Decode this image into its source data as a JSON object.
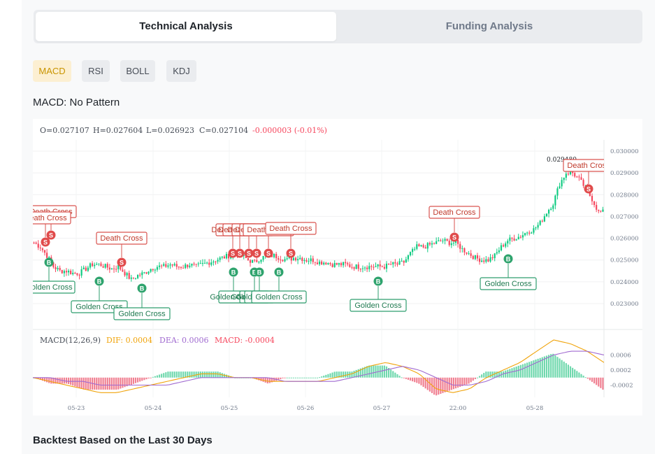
{
  "tabs": {
    "technical": "Technical Analysis",
    "funding": "Funding Analysis"
  },
  "indicators": {
    "items": [
      "MACD",
      "RSI",
      "BOLL",
      "KDJ"
    ],
    "selected": "MACD"
  },
  "pattern_text": "MACD: No Pattern",
  "ohlc": {
    "open": "O=0.027107",
    "high": "H=0.027604",
    "low": "L=0.026923",
    "close": "C=0.027104",
    "change": "-0.000003 (-0.01%)"
  },
  "price_axis": [
    "0.030000",
    "0.029000",
    "0.028000",
    "0.027000",
    "0.026000",
    "0.025000",
    "0.024000",
    "0.023000"
  ],
  "macd_axis": [
    "0.0006",
    "0.0002",
    "-0.0002"
  ],
  "time_axis": [
    "05-23",
    "05-24",
    "05-25",
    "05-26",
    "05-27",
    "22:00",
    "05-28"
  ],
  "macd_legend": {
    "label": "MACD(12,26,9)",
    "dif": "DIF: 0.0004",
    "dea": "DEA: 0.0006",
    "macd": "MACD: -0.0004"
  },
  "max_price_label": "0.029480",
  "signals": {
    "death": "Death Cross",
    "golden": "Golden Cross",
    "buy_marker": "B",
    "sell_marker": "S"
  },
  "colors": {
    "up": "#0ecb81",
    "down": "#f6465d",
    "dif": "#f0a30a",
    "dea": "#a06ad0",
    "accent": "#c99400"
  },
  "backtest_title": "Backtest Based on the Last 30 Days",
  "chart_data": {
    "type": "candlestick",
    "close_series": [
      0.0258,
      0.0256,
      0.0252,
      0.0247,
      0.0245,
      0.0245,
      0.0244,
      0.0244,
      0.0246,
      0.0248,
      0.0248,
      0.0247,
      0.0246,
      0.0247,
      0.0244,
      0.0241,
      0.0243,
      0.0244,
      0.0246,
      0.0247,
      0.0247,
      0.0248,
      0.0247,
      0.0247,
      0.0248,
      0.0247,
      0.0248,
      0.0249,
      0.025,
      0.0251,
      0.0252,
      0.0253,
      0.0252,
      0.025,
      0.0249,
      0.0251,
      0.0252,
      0.0252,
      0.0251,
      0.025,
      0.0251,
      0.0251,
      0.025,
      0.025,
      0.0249,
      0.0249,
      0.0248,
      0.0248,
      0.0248,
      0.0247,
      0.0247,
      0.0247,
      0.0247,
      0.0247,
      0.0247,
      0.0248,
      0.0248,
      0.0249,
      0.0253,
      0.0256,
      0.0256,
      0.0257,
      0.0258,
      0.0259,
      0.0258,
      0.0258,
      0.0255,
      0.0253,
      0.0251,
      0.025,
      0.025,
      0.0252,
      0.0256,
      0.0259,
      0.026,
      0.0261,
      0.0263,
      0.0264,
      0.0267,
      0.0272,
      0.0276,
      0.0285,
      0.029,
      0.029,
      0.0287,
      0.0283,
      0.0278,
      0.0272
    ],
    "dif": [
      0.0,
      -0.0001,
      -0.0002,
      -0.0003,
      -0.0004,
      -0.0004,
      -0.0003,
      -0.0002,
      -0.0001,
      0.0,
      0.0001,
      0.0001,
      0.0,
      0.0,
      -0.0001,
      -0.0001,
      -0.0001,
      -0.0001,
      0.0,
      0.0001,
      0.0003,
      0.0004,
      0.0003,
      0.0001,
      -0.0003,
      -0.0004,
      -0.0003,
      0.0,
      0.0002,
      0.0004,
      0.0007,
      0.001,
      0.0009,
      0.0007,
      0.0004
    ],
    "dea": [
      0.0,
      0.0,
      -0.0001,
      -0.0001,
      -0.0002,
      -0.0002,
      -0.0002,
      -0.0002,
      -0.0002,
      -0.0001,
      0.0,
      0.0,
      0.0,
      0.0,
      0.0,
      -0.0001,
      -0.0001,
      -0.0001,
      -0.0001,
      0.0,
      0.0001,
      0.0002,
      0.0003,
      0.0002,
      0.0,
      -0.0002,
      -0.0002,
      -0.0001,
      0.0001,
      0.0002,
      0.0004,
      0.0006,
      0.0007,
      0.0007,
      0.0006
    ],
    "ylim": [
      0.0228,
      0.0302
    ]
  }
}
